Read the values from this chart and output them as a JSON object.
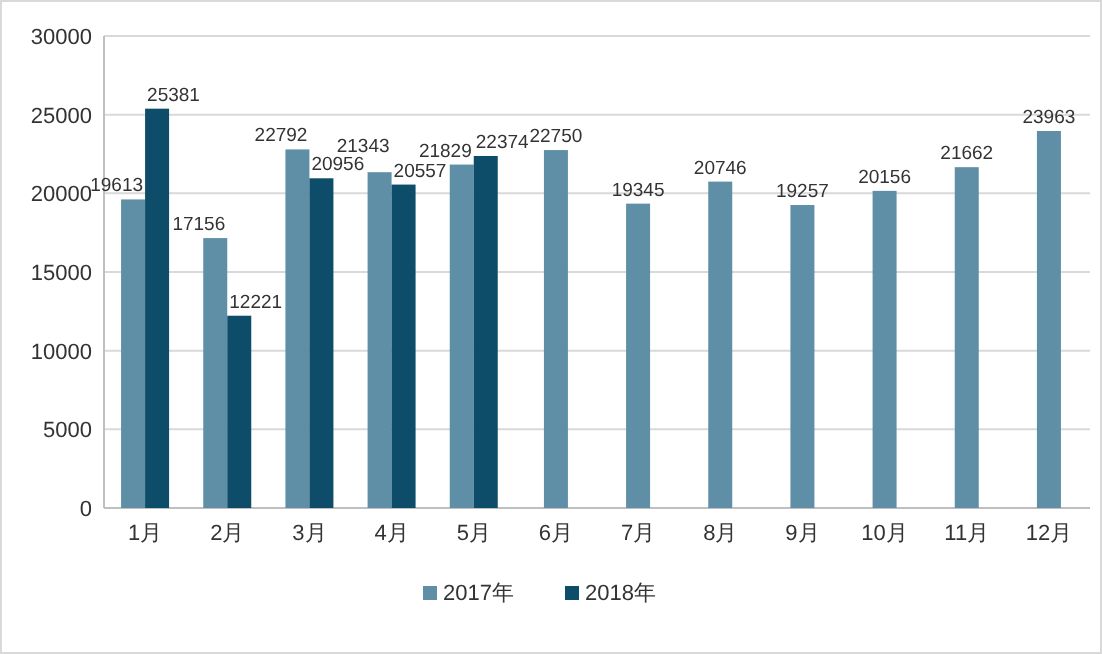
{
  "chart_data": {
    "type": "bar",
    "categories": [
      "1月",
      "2月",
      "3月",
      "4月",
      "5月",
      "6月",
      "7月",
      "8月",
      "9月",
      "10月",
      "11月",
      "12月"
    ],
    "series": [
      {
        "name": "2017年",
        "color": "#5e8fa7",
        "values": [
          19613,
          17156,
          22792,
          21343,
          21829,
          22750,
          19345,
          20746,
          19257,
          20156,
          21662,
          23963
        ]
      },
      {
        "name": "2018年",
        "color": "#0e4d6a",
        "values": [
          25381,
          12221,
          20956,
          20557,
          22374,
          null,
          null,
          null,
          null,
          null,
          null,
          null
        ]
      }
    ],
    "ylim": [
      0,
      30000
    ],
    "yticks": [
      0,
      5000,
      10000,
      15000,
      20000,
      25000,
      30000
    ],
    "grid": "y",
    "legend": "bottom",
    "data_labels": true
  }
}
